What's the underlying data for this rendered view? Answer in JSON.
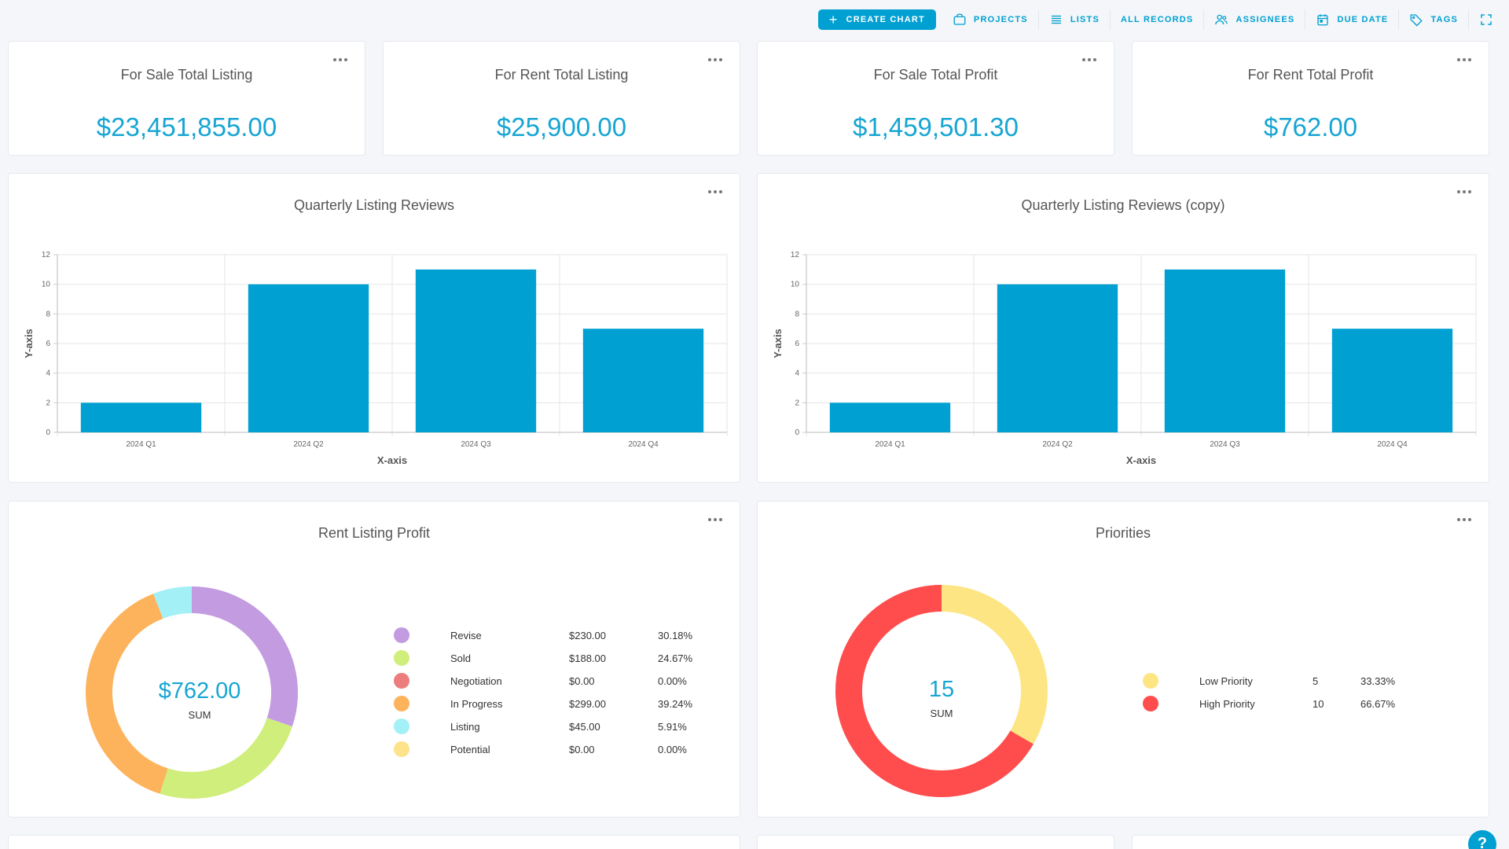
{
  "toolbar": {
    "create_chart": "CREATE CHART",
    "projects": "PROJECTS",
    "lists": "LISTS",
    "all_records": "ALL RECORDS",
    "assignees": "ASSIGNEES",
    "due_date": "DUE DATE",
    "tags": "TAGS"
  },
  "kpis": [
    {
      "title": "For Sale Total Listing",
      "value": "$23,451,855.00"
    },
    {
      "title": "For Rent Total Listing",
      "value": "$25,900.00"
    },
    {
      "title": "For Sale Total Profit",
      "value": "$1,459,501.30"
    },
    {
      "title": "For Rent Total Profit",
      "value": "$762.00"
    }
  ],
  "chart_data": [
    {
      "type": "bar",
      "title": "Quarterly Listing Reviews",
      "categories": [
        "2024 Q1",
        "2024 Q2",
        "2024 Q3",
        "2024 Q4"
      ],
      "values": [
        2,
        10,
        11,
        7
      ],
      "xlabel": "X-axis",
      "ylabel": "Y-axis",
      "ylim": [
        0,
        12
      ],
      "yticks": [
        0,
        2,
        4,
        6,
        8,
        10,
        12
      ],
      "grid": true,
      "color": "#00a0d2"
    },
    {
      "type": "bar",
      "title": "Quarterly Listing Reviews (copy)",
      "categories": [
        "2024 Q1",
        "2024 Q2",
        "2024 Q3",
        "2024 Q4"
      ],
      "values": [
        2,
        10,
        11,
        7
      ],
      "xlabel": "X-axis",
      "ylabel": "Y-axis",
      "ylim": [
        0,
        12
      ],
      "yticks": [
        0,
        2,
        4,
        6,
        8,
        10,
        12
      ],
      "grid": true,
      "color": "#00a0d2"
    },
    {
      "type": "pie",
      "title": "Rent Listing Profit",
      "center_value": "$762.00",
      "center_label": "SUM",
      "legend_position": "right",
      "slices": [
        {
          "name": "Revise",
          "value": 230,
          "value_label": "$230.00",
          "pct": "30.18%",
          "color": "#c39be0"
        },
        {
          "name": "Sold",
          "value": 188,
          "value_label": "$188.00",
          "pct": "24.67%",
          "color": "#d0ee7c"
        },
        {
          "name": "Negotiation",
          "value": 0,
          "value_label": "$0.00",
          "pct": "0.00%",
          "color": "#ec7d7d"
        },
        {
          "name": "In Progress",
          "value": 299,
          "value_label": "$299.00",
          "pct": "39.24%",
          "color": "#fdb35c"
        },
        {
          "name": "Listing",
          "value": 45,
          "value_label": "$45.00",
          "pct": "5.91%",
          "color": "#a3f0f6"
        },
        {
          "name": "Potential",
          "value": 0,
          "value_label": "$0.00",
          "pct": "0.00%",
          "color": "#fde38a"
        }
      ]
    },
    {
      "type": "pie",
      "title": "Priorities",
      "center_value": "15",
      "center_label": "SUM",
      "legend_position": "right",
      "slices": [
        {
          "name": "Low Priority",
          "value": 5,
          "value_label": "5",
          "pct": "33.33%",
          "color": "#fde584"
        },
        {
          "name": "High Priority",
          "value": 10,
          "value_label": "10",
          "pct": "66.67%",
          "color": "#ff4d4d"
        }
      ]
    }
  ],
  "help": "?"
}
